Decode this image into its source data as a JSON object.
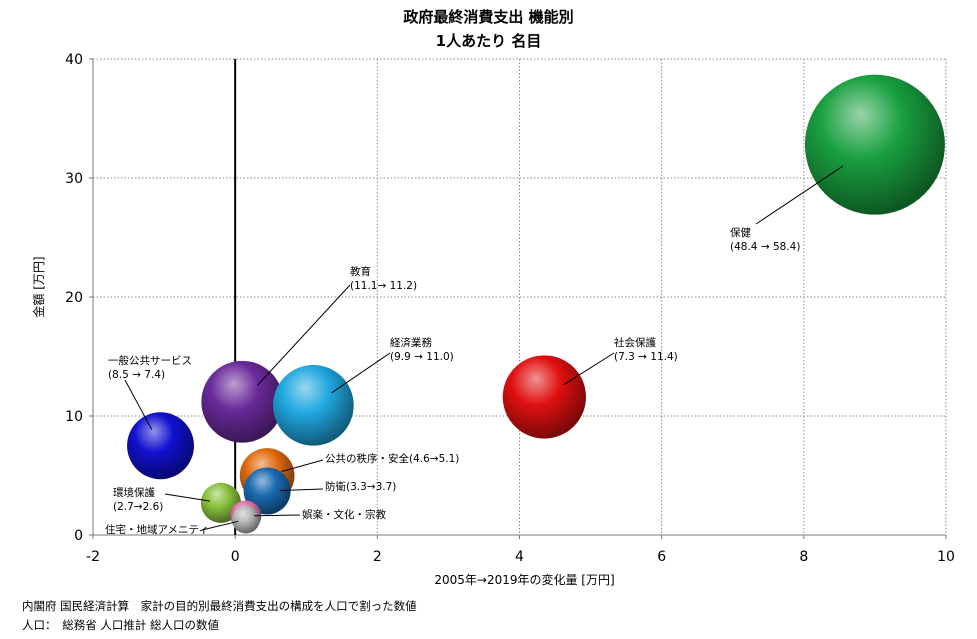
{
  "title_line1": "政府最終消費支出 機能別",
  "title_line2": "1人あたり 名目",
  "notes": [
    "内閣府 国民経済計算　家計の目的別最終消費支出の構成を人口で割った数値",
    "人口：　総務省 人口推計 総人口の数値"
  ],
  "chart_data": {
    "type": "bubble",
    "xlabel": "2005年→2019年の変化量 [万円]",
    "ylabel": "金額 [万円]",
    "xlim": [
      -2,
      10
    ],
    "ylim": [
      0,
      40
    ],
    "xticks": [
      -2,
      0,
      2,
      4,
      6,
      8,
      10
    ],
    "yticks": [
      0,
      10,
      20,
      30,
      40
    ],
    "grid": true,
    "series": [
      {
        "key": "hoken",
        "label1": "保健",
        "label2": "(48.4 → 58.4)",
        "x": 9.0,
        "y": 32.8,
        "color": "#19a040"
      },
      {
        "key": "shakai",
        "label1": "社会保護",
        "label2": "(7.3 → 11.4)",
        "x": 4.35,
        "y": 11.6,
        "color": "#e01010"
      },
      {
        "key": "keizai",
        "label1": "経済業務",
        "label2": "(9.9 → 11.0)",
        "x": 1.1,
        "y": 10.9,
        "color": "#20a8e0"
      },
      {
        "key": "kyoiku",
        "label1": "教育",
        "label2": "(11.1→ 11.2)",
        "x": 0.1,
        "y": 11.2,
        "color": "#6a2a9a"
      },
      {
        "key": "ippan",
        "label1": "一般公共サービス",
        "label2": "(8.5 → 7.4)",
        "x": -1.05,
        "y": 7.5,
        "color": "#1010d0"
      },
      {
        "key": "chitsujo",
        "label1": "公共の秩序・安全(4.6→5.1)",
        "label2": "",
        "x": 0.45,
        "y": 5.0,
        "color": "#e06a10"
      },
      {
        "key": "boei",
        "label1": "防衛(3.3→3.7)",
        "label2": "",
        "x": 0.45,
        "y": 3.7,
        "color": "#1a6ab0"
      },
      {
        "key": "kankyo",
        "label1": "環境保護",
        "label2": "(2.7→2.6)",
        "x": -0.2,
        "y": 2.7,
        "color": "#8ac040"
      },
      {
        "key": "goraku",
        "label1": "娯楽・文化・宗教",
        "label2": "",
        "x": 0.15,
        "y": 1.6,
        "color": "#e070a8"
      },
      {
        "key": "jutaku",
        "label1": "住宅・地域アメニティ",
        "label2": "",
        "x": 0.15,
        "y": 1.3,
        "color": "#b8b8b8"
      }
    ]
  }
}
